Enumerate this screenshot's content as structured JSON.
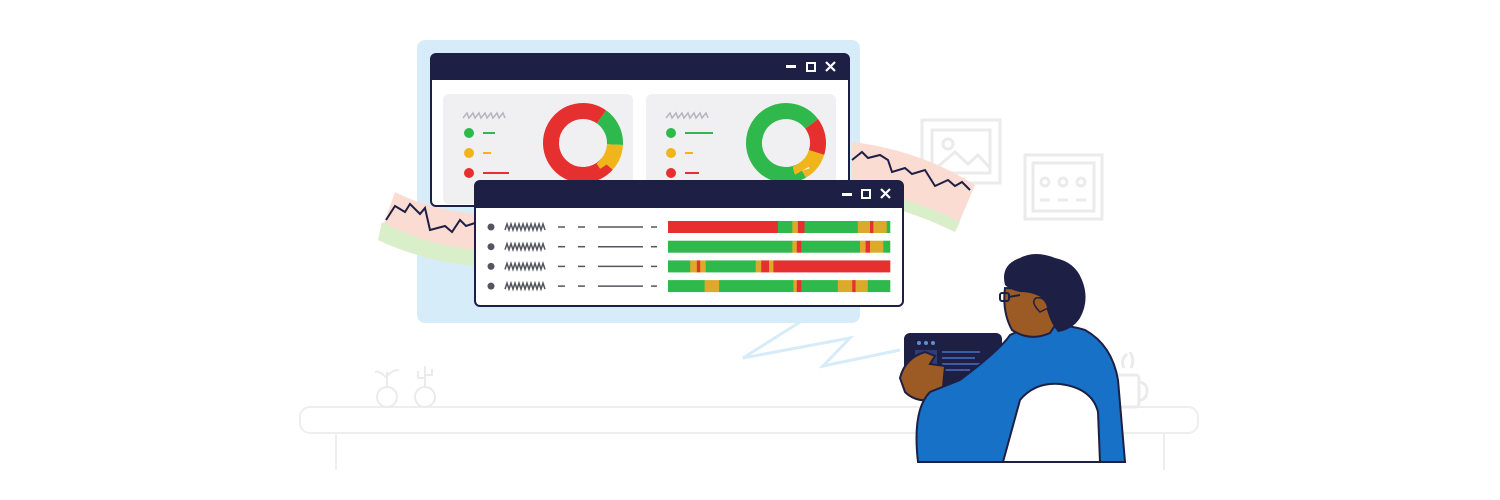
{
  "illustration": {
    "palette": {
      "navy": "#1e1f45",
      "panel_bg": "#f0f0f2",
      "window_bg": "#ffffff",
      "backdrop": "#d6ecf9",
      "green": "#2fb84c",
      "yellow": "#f1b51c",
      "red": "#e5302f",
      "orange": "#ef6a1c",
      "gold": "#dcaa2a",
      "scribble": "#9a9aa3",
      "faint": "#ececec",
      "jacket": "#1771c6",
      "skin": "#9c5a25",
      "chair": "#ffffff"
    },
    "window_controls": [
      "minimize-icon",
      "maximize-icon",
      "close-icon"
    ],
    "donut_panels": [
      {
        "legend": [
          "green",
          "yellow",
          "red"
        ],
        "segments": [
          {
            "color": "red",
            "fraction": 0.73
          },
          {
            "color": "green",
            "fraction": 0.16
          },
          {
            "color": "yellow",
            "fraction": 0.11
          }
        ]
      },
      {
        "legend": [
          "green",
          "yellow",
          "red"
        ],
        "segments": [
          {
            "color": "green",
            "fraction": 0.73
          },
          {
            "color": "red",
            "fraction": 0.15
          },
          {
            "color": "yellow",
            "fraction": 0.12
          }
        ]
      }
    ],
    "timeline_rows": [
      [
        [
          "red",
          0.495
        ],
        [
          "green",
          0.065
        ],
        [
          "gold",
          0.025
        ],
        [
          "red",
          0.03
        ],
        [
          "green",
          0.24
        ],
        [
          "gold",
          0.055
        ],
        [
          "red",
          0.015
        ],
        [
          "gold",
          0.06
        ],
        [
          "green",
          0.015
        ]
      ],
      [
        [
          "green",
          0.56
        ],
        [
          "gold",
          0.02
        ],
        [
          "red",
          0.02
        ],
        [
          "green",
          0.265
        ],
        [
          "gold",
          0.025
        ],
        [
          "red",
          0.02
        ],
        [
          "gold",
          0.06
        ],
        [
          "green",
          0.03
        ]
      ],
      [
        [
          "green",
          0.1
        ],
        [
          "gold",
          0.03
        ],
        [
          "red",
          0.015
        ],
        [
          "gold",
          0.025
        ],
        [
          "green",
          0.225
        ],
        [
          "gold",
          0.025
        ],
        [
          "red",
          0.035
        ],
        [
          "gold",
          0.02
        ],
        [
          "red",
          0.525
        ]
      ],
      [
        [
          "green",
          0.165
        ],
        [
          "gold",
          0.065
        ],
        [
          "green",
          0.335
        ],
        [
          "gold",
          0.015
        ],
        [
          "red",
          0.02
        ],
        [
          "green",
          0.165
        ],
        [
          "gold",
          0.065
        ],
        [
          "red",
          0.015
        ],
        [
          "gold",
          0.055
        ],
        [
          "green",
          0.1
        ]
      ]
    ]
  }
}
